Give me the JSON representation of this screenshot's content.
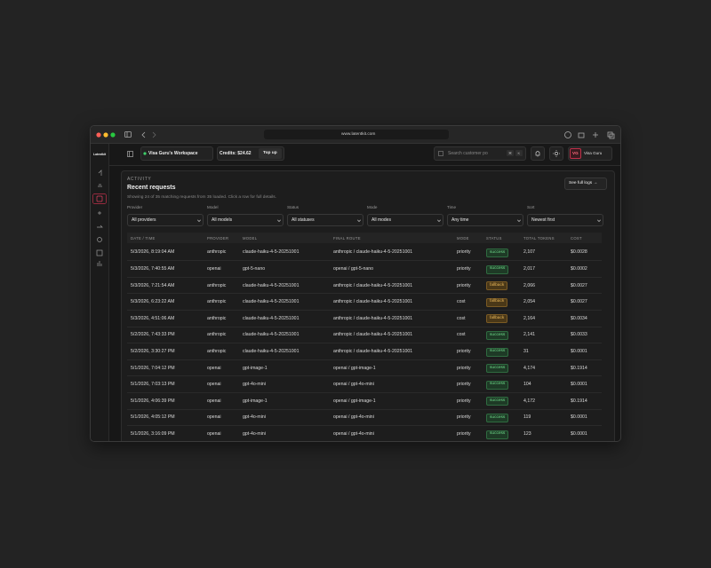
{
  "browser": {
    "url": "www.latentkit.com"
  },
  "app": {
    "logo": "Latentkit",
    "workspace": "Visa Guru's Workspace",
    "credits": "Credits: $24.62",
    "top_up": "Top up",
    "search_placeholder": "Search customer po",
    "shortcut": [
      "⌘",
      "K"
    ],
    "user_initials": "VG",
    "user_name": "Visa Guru"
  },
  "activity": {
    "section": "Activity",
    "title": "Recent requests",
    "subtitle": "Showing 24 of 35 matching requests from 35 loaded. Click a row for full details.",
    "full_logs": "See full logs →",
    "filters": [
      {
        "label": "Provider",
        "value": "All providers"
      },
      {
        "label": "Model",
        "value": "All models"
      },
      {
        "label": "Status",
        "value": "All statuses"
      },
      {
        "label": "Mode",
        "value": "All modes"
      },
      {
        "label": "Time",
        "value": "Any time"
      },
      {
        "label": "Sort",
        "value": "Newest first"
      }
    ]
  },
  "table": {
    "headers": [
      "DATE / TIME",
      "PROVIDER",
      "MODEL",
      "FINAL ROUTE",
      "MODE",
      "STATUS",
      "TOTAL TOKENS",
      "COST"
    ],
    "rows": [
      [
        "5/3/2026, 8:19:04 AM",
        "anthropic",
        "claude-haiku-4-5-20251001",
        "anthropic / claude-haiku-4-5-20251001",
        "priority",
        "success",
        "2,107",
        "$0.0028"
      ],
      [
        "5/3/2026, 7:40:55 AM",
        "openai",
        "gpt-5-nano",
        "openai / gpt-5-nano",
        "priority",
        "success",
        "2,017",
        "$0.0002"
      ],
      [
        "5/3/2026, 7:21:54 AM",
        "anthropic",
        "claude-haiku-4-5-20251001",
        "anthropic / claude-haiku-4-5-20251001",
        "priority",
        "fallback",
        "2,066",
        "$0.0027"
      ],
      [
        "5/3/2026, 6:23:22 AM",
        "anthropic",
        "claude-haiku-4-5-20251001",
        "anthropic / claude-haiku-4-5-20251001",
        "cost",
        "fallback",
        "2,054",
        "$0.0027"
      ],
      [
        "5/3/2026, 4:51:06 AM",
        "anthropic",
        "claude-haiku-4-5-20251001",
        "anthropic / claude-haiku-4-5-20251001",
        "cost",
        "fallback",
        "2,164",
        "$0.0034"
      ],
      [
        "5/2/2026, 7:43:33 PM",
        "anthropic",
        "claude-haiku-4-5-20251001",
        "anthropic / claude-haiku-4-5-20251001",
        "cost",
        "success",
        "2,141",
        "$0.0033"
      ],
      [
        "5/2/2026, 3:30:27 PM",
        "anthropic",
        "claude-haiku-4-5-20251001",
        "anthropic / claude-haiku-4-5-20251001",
        "priority",
        "success",
        "31",
        "$0.0001"
      ],
      [
        "5/1/2026, 7:04:12 PM",
        "openai",
        "gpt-image-1",
        "openai / gpt-image-1",
        "priority",
        "success",
        "4,174",
        "$0.1914"
      ],
      [
        "5/1/2026, 7:03:13 PM",
        "openai",
        "gpt-4o-mini",
        "openai / gpt-4o-mini",
        "priority",
        "success",
        "104",
        "$0.0001"
      ],
      [
        "5/1/2026, 4:06:39 PM",
        "openai",
        "gpt-image-1",
        "openai / gpt-image-1",
        "priority",
        "success",
        "4,172",
        "$0.1914"
      ],
      [
        "5/1/2026, 4:05:12 PM",
        "openai",
        "gpt-4o-mini",
        "openai / gpt-4o-mini",
        "priority",
        "success",
        "119",
        "$0.0001"
      ],
      [
        "5/1/2026, 3:16:09 PM",
        "openai",
        "gpt-4o-mini",
        "openai / gpt-4o-mini",
        "priority",
        "success",
        "123",
        "$0.0001"
      ]
    ]
  }
}
